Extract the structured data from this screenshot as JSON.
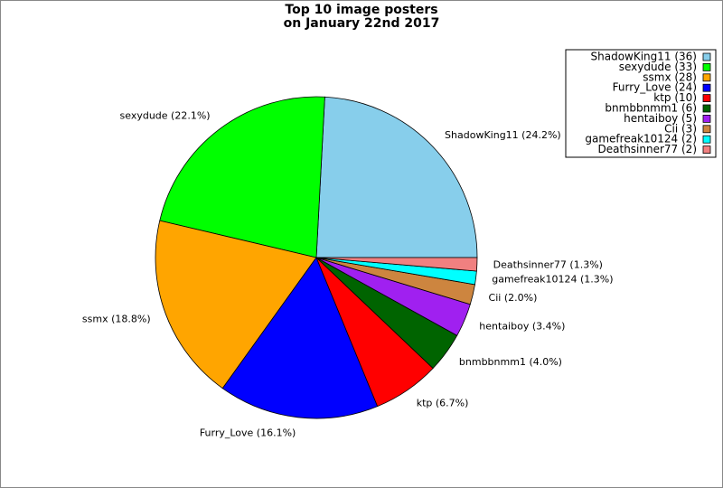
{
  "chart_data": {
    "type": "pie",
    "title": [
      "Top 10 image posters",
      "on January 22nd 2017"
    ],
    "categories": [
      "ShadowKing11",
      "sexydude",
      "ssmx",
      "Furry_Love",
      "ktp",
      "bnmbbnmm1",
      "hentaiboy",
      "Cii",
      "gamefreak10124",
      "Deathsinner77"
    ],
    "values": [
      36,
      33,
      28,
      24,
      10,
      6,
      5,
      3,
      2,
      2
    ],
    "labels": [
      "ShadowKing11 (24.2%)",
      "sexydude (22.1%)",
      "ssmx (18.8%)",
      "Furry_Love (16.1%)",
      "ktp (6.7%)",
      "bnmbbnmm1 (4.0%)",
      "hentaiboy (3.4%)",
      "Cii (2.0%)",
      "gamefreak10124 (1.3%)",
      "Deathsinner77 (1.3%)"
    ],
    "value_labels": [
      "ShadowKing11 (36)",
      "sexydude (33)",
      "ssmx (28)",
      "Furry_Love (24)",
      "ktp (10)",
      "bnmbbnmm1 (6)",
      "hentaiboy (5)",
      "Cii (3)",
      "gamefreak10124 (2)",
      "Deathsinner77 (2)"
    ],
    "colors": [
      "#87ceeb",
      "#00ff00",
      "#ffa500",
      "#0000ff",
      "#ff0000",
      "#006400",
      "#a020f0",
      "#cd853f",
      "#00ffff",
      "#f08080"
    ],
    "legend": "upper right"
  }
}
